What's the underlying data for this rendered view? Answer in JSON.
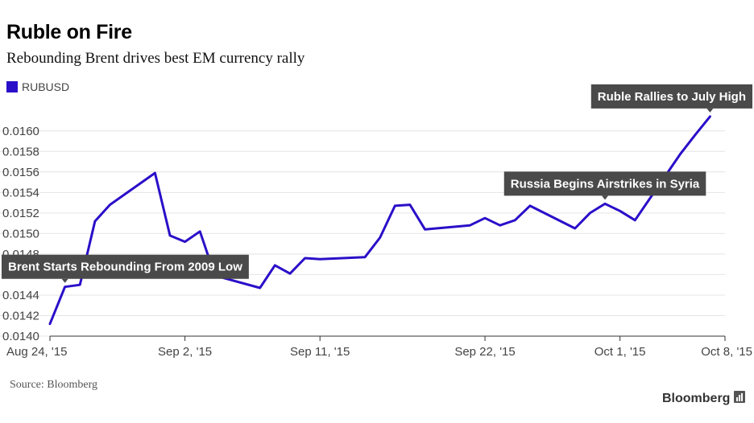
{
  "header": {
    "title": "Ruble on Fire",
    "subtitle": "Rebounding Brent drives best EM currency rally"
  },
  "legend": {
    "label": "RUBUSD"
  },
  "footer": {
    "source": "Source: Bloomberg",
    "brand": "Bloomberg"
  },
  "colors": {
    "series": "#2a0fc9",
    "grid": "#e4e4e4",
    "annotation_bg": "#4a4a4a",
    "annotation_text": "#ffffff",
    "axis_text": "#444444"
  },
  "icons": {
    "brand": "bloomberg-chart-icon"
  },
  "chart_data": {
    "type": "line",
    "title": "Ruble on Fire",
    "subtitle": "Rebounding Brent drives best EM currency rally",
    "xlabel": "",
    "ylabel": "",
    "ylim": [
      0.014,
      0.0161
    ],
    "xlim": [
      "2015-08-24",
      "2015-10-08"
    ],
    "grid": true,
    "legend_placement": "top-left",
    "y_ticks": [
      "0.0140",
      "0.0142",
      "0.0144",
      "0.0146",
      "0.0148",
      "0.0150",
      "0.0152",
      "0.0154",
      "0.0156",
      "0.0158",
      "0.0160"
    ],
    "x_ticks": [
      {
        "date": "2015-08-24",
        "label": "Aug 24, '15"
      },
      {
        "date": "2015-09-02",
        "label": "Sep 2, '15"
      },
      {
        "date": "2015-09-11",
        "label": "Sep 11, '15"
      },
      {
        "date": "2015-09-22",
        "label": "Sep 22, '15"
      },
      {
        "date": "2015-10-01",
        "label": "Oct 1, '15"
      },
      {
        "date": "2015-10-08",
        "label": "Oct 8, '15"
      }
    ],
    "series": [
      {
        "name": "RUBUSD",
        "color": "#2a0fc9",
        "points": [
          [
            "2015-08-24",
            0.01412
          ],
          [
            "2015-08-25",
            0.01448
          ],
          [
            "2015-08-26",
            0.0145
          ],
          [
            "2015-08-27",
            0.01512
          ],
          [
            "2015-08-28",
            0.01528
          ],
          [
            "2015-08-31",
            0.01559
          ],
          [
            "2015-09-01",
            0.01498
          ],
          [
            "2015-09-02",
            0.01492
          ],
          [
            "2015-09-03",
            0.01502
          ],
          [
            "2015-09-04",
            0.01459
          ],
          [
            "2015-09-07",
            0.01447
          ],
          [
            "2015-09-08",
            0.01469
          ],
          [
            "2015-09-09",
            0.01461
          ],
          [
            "2015-09-10",
            0.01476
          ],
          [
            "2015-09-11",
            0.01475
          ],
          [
            "2015-09-14",
            0.01477
          ],
          [
            "2015-09-15",
            0.01496
          ],
          [
            "2015-09-16",
            0.01527
          ],
          [
            "2015-09-17",
            0.01528
          ],
          [
            "2015-09-18",
            0.01504
          ],
          [
            "2015-09-21",
            0.01508
          ],
          [
            "2015-09-22",
            0.01515
          ],
          [
            "2015-09-23",
            0.01508
          ],
          [
            "2015-09-24",
            0.01513
          ],
          [
            "2015-09-25",
            0.01527
          ],
          [
            "2015-09-28",
            0.01505
          ],
          [
            "2015-09-29",
            0.0152
          ],
          [
            "2015-09-30",
            0.01529
          ],
          [
            "2015-10-01",
            0.01522
          ],
          [
            "2015-10-02",
            0.01513
          ],
          [
            "2015-10-05",
            0.01577
          ],
          [
            "2015-10-06",
            0.01596
          ],
          [
            "2015-10-07",
            0.01614
          ]
        ]
      }
    ],
    "annotations": [
      {
        "text": "Brent Starts Rebounding From 2009 Low",
        "date": "2015-08-25",
        "value": 0.01448
      },
      {
        "text": "Russia Begins Airstrikes in Syria",
        "date": "2015-09-30",
        "value": 0.01529
      },
      {
        "text": "Ruble Rallies to July High",
        "date": "2015-10-07",
        "value": 0.01614
      }
    ]
  }
}
